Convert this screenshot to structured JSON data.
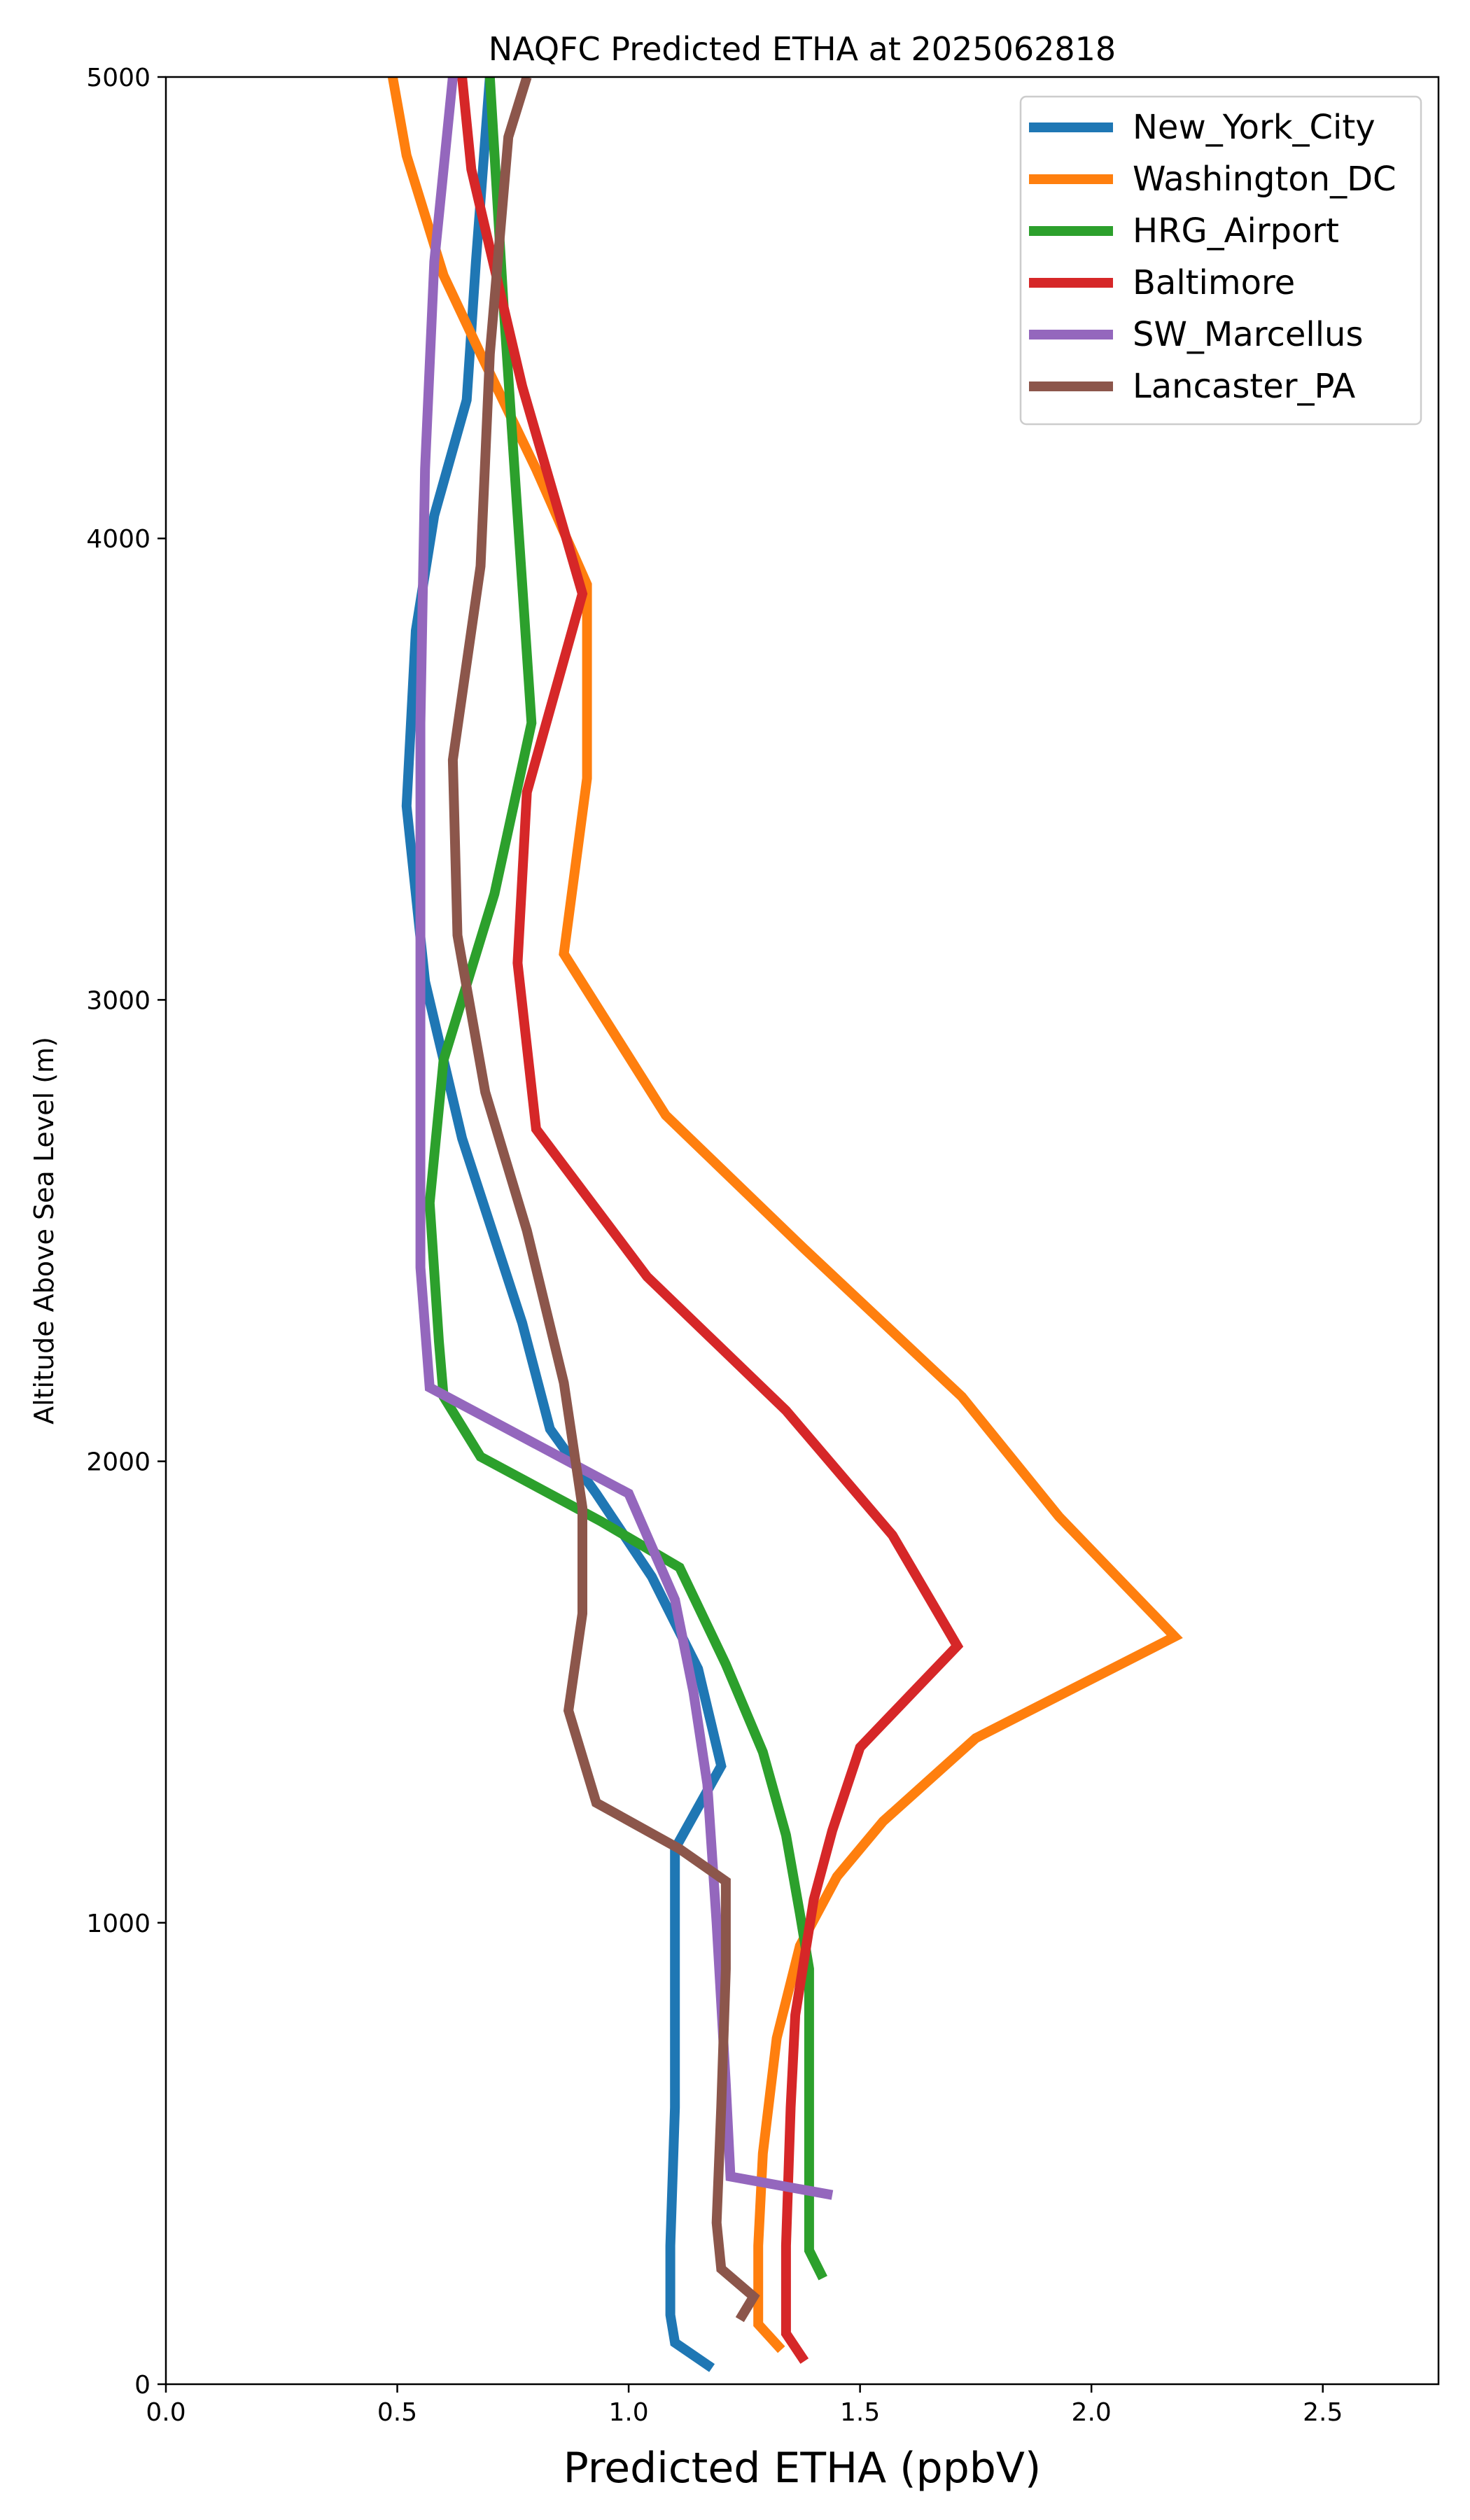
{
  "chart_data": {
    "type": "line",
    "title": "NAQFC Predicted ETHA at 2025062818",
    "xlabel": "Predicted ETHA (ppbV)",
    "ylabel": "Altitude Above Sea Level (m)",
    "xlim": [
      0,
      2.75
    ],
    "ylim": [
      0,
      5000
    ],
    "xticks": [
      0,
      0.5,
      1.0,
      1.5,
      2.0,
      2.5
    ],
    "xtick_labels": [
      "0.0",
      "0.5",
      "1.0",
      "1.5",
      "2.0",
      "2.5"
    ],
    "yticks": [
      0,
      1000,
      2000,
      3000,
      4000,
      5000
    ],
    "ytick_labels": [
      "0",
      "1000",
      "2000",
      "3000",
      "4000",
      "5000"
    ],
    "grid": false,
    "legend_position": "top-right",
    "series": [
      {
        "name": "New_York_City",
        "color": "#1f77b4",
        "points": [
          [
            1.18,
            35
          ],
          [
            1.1,
            90
          ],
          [
            1.09,
            150
          ],
          [
            1.09,
            300
          ],
          [
            1.1,
            600
          ],
          [
            1.1,
            900
          ],
          [
            1.1,
            1160
          ],
          [
            1.2,
            1340
          ],
          [
            1.15,
            1550
          ],
          [
            1.05,
            1750
          ],
          [
            0.93,
            1930
          ],
          [
            0.83,
            2070
          ],
          [
            0.77,
            2300
          ],
          [
            0.64,
            2700
          ],
          [
            0.56,
            3040
          ],
          [
            0.52,
            3420
          ],
          [
            0.54,
            3800
          ],
          [
            0.58,
            4050
          ],
          [
            0.65,
            4300
          ],
          [
            0.67,
            4600
          ],
          [
            0.7,
            5000
          ]
        ]
      },
      {
        "name": "Washington_DC",
        "color": "#ff7f0e",
        "points": [
          [
            1.33,
            75
          ],
          [
            1.28,
            130
          ],
          [
            1.28,
            300
          ],
          [
            1.29,
            500
          ],
          [
            1.32,
            750
          ],
          [
            1.37,
            950
          ],
          [
            1.45,
            1100
          ],
          [
            1.55,
            1220
          ],
          [
            1.75,
            1400
          ],
          [
            2.18,
            1620
          ],
          [
            1.93,
            1880
          ],
          [
            1.72,
            2140
          ],
          [
            1.38,
            2460
          ],
          [
            1.08,
            2750
          ],
          [
            0.86,
            3100
          ],
          [
            0.91,
            3480
          ],
          [
            0.91,
            3900
          ],
          [
            0.8,
            4150
          ],
          [
            0.68,
            4400
          ],
          [
            0.6,
            4570
          ],
          [
            0.52,
            4830
          ],
          [
            0.49,
            5000
          ]
        ]
      },
      {
        "name": "HRG_Airport",
        "color": "#2ca02c",
        "points": [
          [
            1.42,
            230
          ],
          [
            1.39,
            290
          ],
          [
            1.39,
            600
          ],
          [
            1.39,
            900
          ],
          [
            1.37,
            1020
          ],
          [
            1.34,
            1190
          ],
          [
            1.29,
            1370
          ],
          [
            1.21,
            1560
          ],
          [
            1.11,
            1770
          ],
          [
            0.94,
            1870
          ],
          [
            0.68,
            2010
          ],
          [
            0.6,
            2140
          ],
          [
            0.59,
            2260
          ],
          [
            0.57,
            2560
          ],
          [
            0.6,
            2870
          ],
          [
            0.71,
            3230
          ],
          [
            0.79,
            3600
          ],
          [
            0.76,
            4050
          ],
          [
            0.73,
            4500
          ],
          [
            0.7,
            5000
          ]
        ]
      },
      {
        "name": "Baltimore",
        "color": "#d62728",
        "points": [
          [
            1.38,
            50
          ],
          [
            1.34,
            110
          ],
          [
            1.34,
            300
          ],
          [
            1.35,
            600
          ],
          [
            1.36,
            800
          ],
          [
            1.4,
            1050
          ],
          [
            1.44,
            1200
          ],
          [
            1.5,
            1380
          ],
          [
            1.71,
            1600
          ],
          [
            1.57,
            1840
          ],
          [
            1.34,
            2110
          ],
          [
            1.04,
            2400
          ],
          [
            0.8,
            2720
          ],
          [
            0.76,
            3080
          ],
          [
            0.78,
            3450
          ],
          [
            0.9,
            3880
          ],
          [
            0.77,
            4330
          ],
          [
            0.66,
            4800
          ],
          [
            0.64,
            5000
          ]
        ]
      },
      {
        "name": "SW_Marcellus",
        "color": "#9467bd",
        "points": [
          [
            1.44,
            410
          ],
          [
            1.22,
            450
          ],
          [
            1.21,
            650
          ],
          [
            1.19,
            1000
          ],
          [
            1.17,
            1300
          ],
          [
            1.14,
            1500
          ],
          [
            1.1,
            1700
          ],
          [
            1.0,
            1930
          ],
          [
            0.57,
            2160
          ],
          [
            0.55,
            2420
          ],
          [
            0.55,
            2800
          ],
          [
            0.55,
            3200
          ],
          [
            0.55,
            3600
          ],
          [
            0.56,
            4150
          ],
          [
            0.58,
            4600
          ],
          [
            0.62,
            5000
          ]
        ]
      },
      {
        "name": "Lancaster_PA",
        "color": "#8c564b",
        "points": [
          [
            1.24,
            140
          ],
          [
            1.27,
            190
          ],
          [
            1.2,
            250
          ],
          [
            1.19,
            350
          ],
          [
            1.2,
            600
          ],
          [
            1.21,
            900
          ],
          [
            1.21,
            1090
          ],
          [
            1.11,
            1160
          ],
          [
            0.93,
            1260
          ],
          [
            0.87,
            1460
          ],
          [
            0.9,
            1670
          ],
          [
            0.9,
            1900
          ],
          [
            0.86,
            2170
          ],
          [
            0.78,
            2500
          ],
          [
            0.69,
            2800
          ],
          [
            0.63,
            3140
          ],
          [
            0.62,
            3520
          ],
          [
            0.68,
            3940
          ],
          [
            0.7,
            4400
          ],
          [
            0.74,
            4870
          ],
          [
            0.78,
            5000
          ]
        ]
      }
    ]
  }
}
